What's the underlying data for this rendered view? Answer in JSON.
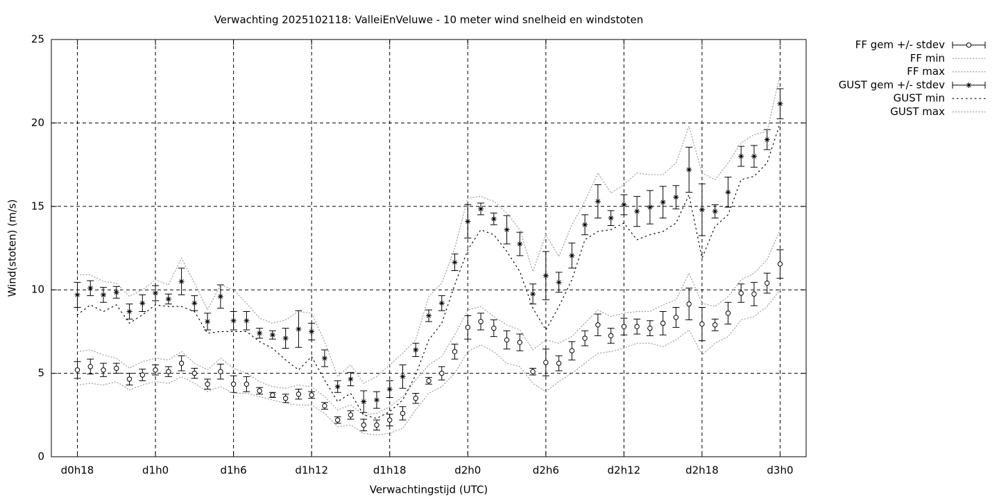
{
  "chart_data": {
    "type": "line",
    "title": "Verwachting 2025102118: ValleiEnVeluwe - 10 meter wind snelheid en windstoten",
    "xlabel": "Verwachtingstijd (UTC)",
    "ylabel": "Wind(stoten) (m/s)",
    "x": [
      18,
      19,
      20,
      21,
      22,
      23,
      24,
      25,
      26,
      27,
      28,
      29,
      30,
      31,
      32,
      33,
      34,
      35,
      36,
      37,
      38,
      39,
      40,
      41,
      42,
      43,
      44,
      45,
      46,
      47,
      48,
      49,
      50,
      51,
      52,
      53,
      54,
      55,
      56,
      57,
      58,
      59,
      60,
      61,
      62,
      63,
      64,
      65,
      66,
      67,
      68,
      69,
      70,
      71,
      72
    ],
    "xlim": [
      16,
      74
    ],
    "xticks": [
      {
        "value": 18,
        "label": "d0h18"
      },
      {
        "value": 24,
        "label": "d1h0"
      },
      {
        "value": 30,
        "label": "d1h6"
      },
      {
        "value": 36,
        "label": "d1h12"
      },
      {
        "value": 42,
        "label": "d1h18"
      },
      {
        "value": 48,
        "label": "d2h0"
      },
      {
        "value": 54,
        "label": "d2h6"
      },
      {
        "value": 60,
        "label": "d2h12"
      },
      {
        "value": 66,
        "label": "d2h18"
      },
      {
        "value": 72,
        "label": "d3h0"
      }
    ],
    "ylim": [
      0,
      25
    ],
    "yticks": [
      0,
      5,
      10,
      15,
      20,
      25
    ],
    "grid": true,
    "legend": "top-right-outside",
    "series": [
      {
        "name": "FF gem +/- stdev",
        "color": "#000000",
        "style": "errorbars",
        "marker": "circle",
        "values": [
          5.2,
          5.4,
          5.2,
          5.3,
          4.65,
          4.9,
          5.2,
          5.1,
          5.6,
          5.0,
          4.35,
          5.1,
          4.35,
          4.35,
          3.95,
          3.7,
          3.5,
          3.75,
          3.7,
          3.05,
          2.2,
          2.5,
          1.9,
          1.9,
          2.2,
          2.6,
          3.5,
          4.55,
          5.0,
          6.3,
          7.75,
          8.1,
          7.7,
          7.0,
          6.85,
          5.1,
          5.65,
          5.6,
          6.35,
          7.1,
          7.9,
          7.25,
          7.8,
          7.8,
          7.7,
          8.0,
          8.35,
          9.15,
          7.95,
          7.9,
          8.6,
          9.8,
          9.75,
          10.4,
          11.55
        ],
        "errors": [
          0.5,
          0.45,
          0.4,
          0.3,
          0.35,
          0.35,
          0.3,
          0.3,
          0.45,
          0.3,
          0.3,
          0.45,
          0.5,
          0.45,
          0.2,
          0.15,
          0.25,
          0.3,
          0.2,
          0.2,
          0.2,
          0.25,
          0.35,
          0.3,
          0.35,
          0.4,
          0.3,
          0.2,
          0.4,
          0.45,
          0.7,
          0.5,
          0.5,
          0.55,
          0.5,
          0.2,
          0.8,
          0.45,
          0.55,
          0.45,
          0.65,
          0.45,
          0.5,
          0.45,
          0.45,
          0.7,
          0.6,
          0.95,
          1.0,
          0.35,
          0.65,
          0.55,
          0.7,
          0.6,
          0.85
        ]
      },
      {
        "name": "FF min",
        "color": "#a0a0a0",
        "style": "dotted",
        "values": [
          4.3,
          4.4,
          4.3,
          4.5,
          4.0,
          4.3,
          4.5,
          4.4,
          4.8,
          4.4,
          3.9,
          4.2,
          3.8,
          3.8,
          3.6,
          3.4,
          3.2,
          3.1,
          3.1,
          2.6,
          1.8,
          1.9,
          1.4,
          1.3,
          1.4,
          1.7,
          2.8,
          3.8,
          4.2,
          5.0,
          6.3,
          6.7,
          6.3,
          5.6,
          5.4,
          4.4,
          3.9,
          4.5,
          5.0,
          5.6,
          6.2,
          6.3,
          6.5,
          6.8,
          6.8,
          6.6,
          7.0,
          7.6,
          6.1,
          6.8,
          7.2,
          8.2,
          8.4,
          9.0,
          10.0
        ]
      },
      {
        "name": "FF max",
        "color": "#a0a0a0",
        "style": "dotted",
        "values": [
          6.3,
          6.4,
          6.1,
          5.9,
          5.3,
          5.7,
          5.9,
          5.8,
          6.3,
          5.6,
          5.2,
          5.9,
          5.3,
          5.0,
          4.5,
          4.2,
          4.1,
          4.3,
          4.2,
          3.6,
          2.8,
          3.1,
          2.5,
          2.6,
          3.0,
          3.6,
          4.6,
          5.5,
          6.0,
          7.3,
          8.8,
          9.0,
          8.4,
          7.9,
          7.6,
          6.4,
          7.0,
          6.8,
          7.2,
          8.0,
          8.8,
          8.4,
          8.6,
          8.7,
          8.7,
          9.1,
          9.4,
          11.0,
          9.2,
          9.0,
          9.6,
          10.6,
          11.0,
          11.8,
          13.6
        ]
      },
      {
        "name": "GUST gem +/- stdev",
        "color": "#000000",
        "style": "errorbars",
        "marker": "star",
        "values": [
          9.7,
          10.1,
          9.7,
          9.85,
          8.7,
          9.2,
          9.8,
          9.45,
          10.5,
          9.2,
          8.1,
          9.6,
          8.15,
          8.15,
          7.4,
          7.3,
          7.1,
          7.65,
          7.5,
          5.9,
          4.2,
          4.65,
          3.3,
          3.4,
          4.05,
          4.8,
          6.4,
          8.45,
          9.2,
          11.65,
          14.1,
          14.85,
          14.25,
          13.6,
          12.75,
          9.75,
          10.85,
          10.45,
          12.05,
          13.9,
          15.3,
          14.3,
          15.1,
          14.7,
          14.95,
          15.25,
          15.55,
          17.2,
          14.8,
          14.7,
          15.85,
          18.0,
          18.0,
          19.0,
          21.15
        ],
        "errors": [
          0.75,
          0.45,
          0.45,
          0.35,
          0.45,
          0.5,
          0.45,
          0.3,
          0.8,
          0.45,
          0.5,
          0.7,
          0.55,
          0.55,
          0.3,
          0.25,
          0.6,
          1.1,
          0.5,
          0.5,
          0.35,
          0.4,
          0.65,
          0.5,
          0.5,
          0.7,
          0.4,
          0.35,
          0.45,
          0.5,
          1.0,
          0.35,
          0.35,
          0.85,
          0.7,
          0.6,
          1.45,
          0.6,
          0.75,
          0.6,
          1.0,
          0.45,
          0.6,
          0.9,
          1.0,
          0.95,
          0.7,
          1.35,
          1.55,
          0.4,
          0.9,
          0.6,
          0.65,
          0.6,
          0.9
        ]
      },
      {
        "name": "GUST min",
        "color": "#000000",
        "style": "dotted",
        "values": [
          8.5,
          9.1,
          8.7,
          9.1,
          8.0,
          8.5,
          9.1,
          9.0,
          9.0,
          8.7,
          7.4,
          7.5,
          7.5,
          7.5,
          6.9,
          6.5,
          5.8,
          5.2,
          6.0,
          4.6,
          3.3,
          3.8,
          2.5,
          2.3,
          2.7,
          3.4,
          4.9,
          7.0,
          8.0,
          10.3,
          12.4,
          13.6,
          13.3,
          12.3,
          11.1,
          8.9,
          7.6,
          9.0,
          10.6,
          13.0,
          13.5,
          13.6,
          14.0,
          13.0,
          13.3,
          13.5,
          14.0,
          15.7,
          11.9,
          13.8,
          14.5,
          16.6,
          16.8,
          17.6,
          20.0
        ]
      },
      {
        "name": "GUST max",
        "color": "#a0a0a0",
        "style": "dotted",
        "values": [
          10.9,
          10.9,
          10.5,
          10.4,
          9.6,
          10.0,
          10.6,
          10.3,
          11.9,
          10.4,
          8.8,
          10.3,
          10.0,
          9.2,
          8.3,
          8.0,
          8.2,
          8.7,
          8.6,
          6.9,
          4.8,
          5.5,
          4.4,
          4.8,
          5.5,
          6.2,
          7.0,
          9.6,
          10.4,
          12.5,
          15.5,
          15.6,
          15.3,
          14.6,
          13.6,
          11.1,
          13.3,
          12.0,
          13.9,
          15.3,
          17.0,
          15.8,
          16.3,
          17.0,
          16.9,
          16.9,
          17.6,
          19.8,
          17.0,
          16.6,
          17.6,
          18.8,
          19.3,
          19.5,
          22.9
        ]
      }
    ]
  }
}
